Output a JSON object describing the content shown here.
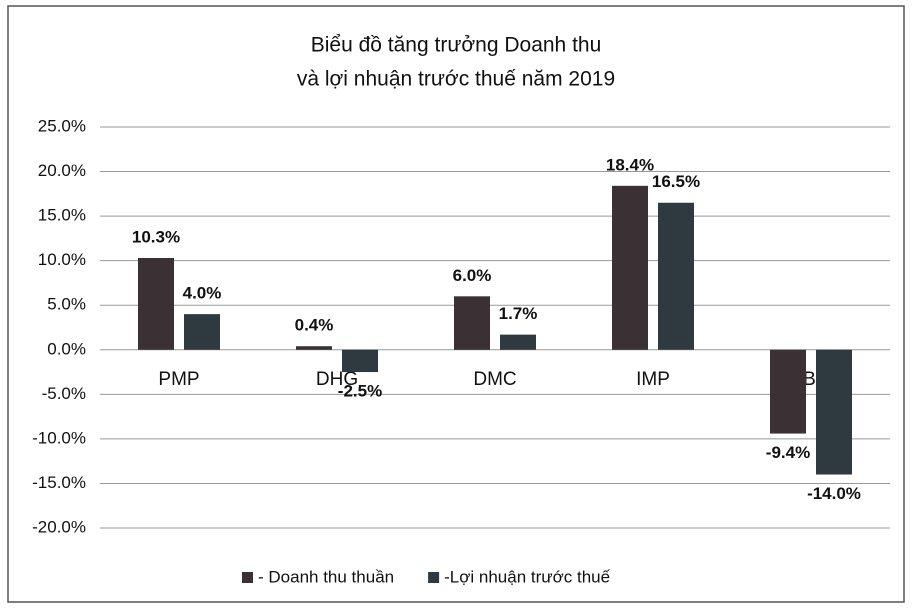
{
  "chart_data": {
    "type": "bar",
    "title": [
      "Biểu đồ tăng trưởng Doanh thu",
      "và lợi nhuận trước thuế năm 2019"
    ],
    "categories": [
      "PMP",
      "DHG",
      "DMC",
      "IMP",
      "TBO"
    ],
    "series": [
      {
        "name": "- Doanh thu thuần",
        "color": "#3b3034",
        "values": [
          10.3,
          0.4,
          6.0,
          18.4,
          -9.4
        ],
        "value_labels": [
          "10.3%",
          "0.4%",
          "6.0%",
          "18.4%",
          "-9.4%"
        ]
      },
      {
        "name": "-Lợi nhuận trước thuế",
        "color": "#2f3a40",
        "values": [
          4.0,
          -2.5,
          1.7,
          16.5,
          -14.0
        ],
        "value_labels": [
          "4.0%",
          "-2.5%",
          "1.7%",
          "16.5%",
          "-14.0%"
        ]
      }
    ],
    "ylim": [
      -20,
      25
    ],
    "yticks": [
      {
        "value": 25,
        "label": "25.0%"
      },
      {
        "value": 20,
        "label": "20.0%"
      },
      {
        "value": 15,
        "label": "15.0%"
      },
      {
        "value": 10,
        "label": "10.0%"
      },
      {
        "value": 5,
        "label": "5.0%"
      },
      {
        "value": 0,
        "label": "0.0%"
      },
      {
        "value": -5,
        "label": "-5.0%"
      },
      {
        "value": -10,
        "label": "-10.0%"
      },
      {
        "value": -15,
        "label": "-15.0%"
      },
      {
        "value": -20,
        "label": "-20.0%"
      }
    ],
    "grid": true
  }
}
